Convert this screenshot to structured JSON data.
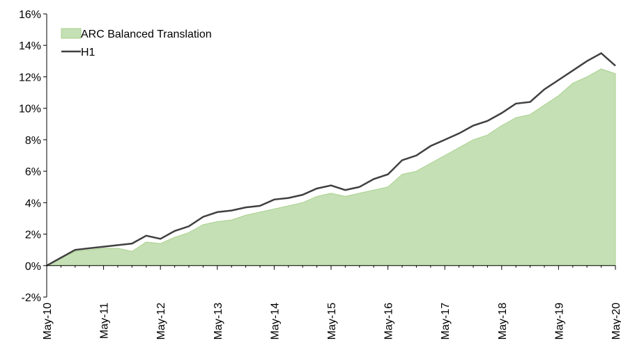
{
  "chart_data": {
    "type": "line",
    "categories": [
      "May-10",
      null,
      null,
      null,
      "May-11",
      null,
      null,
      null,
      "May-12",
      null,
      null,
      null,
      "May-13",
      null,
      null,
      null,
      "May-14",
      null,
      null,
      null,
      "May-15",
      null,
      null,
      null,
      "May-16",
      null,
      null,
      null,
      "May-17",
      null,
      null,
      null,
      "May-18",
      null,
      null,
      null,
      "May-19",
      null,
      null,
      null,
      "May-20"
    ],
    "series": [
      {
        "name": "ARC Balanced Translation",
        "kind": "area",
        "color": "#c5e0b4",
        "values": [
          0,
          0.5,
          0.9,
          1.0,
          1.1,
          1.1,
          0.9,
          1.5,
          1.4,
          1.8,
          2.1,
          2.6,
          2.8,
          2.9,
          3.2,
          3.4,
          3.6,
          3.8,
          4.0,
          4.4,
          4.6,
          4.4,
          4.6,
          4.8,
          5.0,
          5.8,
          6.0,
          6.5,
          7.0,
          7.5,
          8.0,
          8.3,
          8.9,
          9.4,
          9.6,
          10.2,
          10.8,
          11.6,
          12.0,
          12.5,
          12.2
        ]
      },
      {
        "name": "H1",
        "kind": "line",
        "color": "#404040",
        "values": [
          0,
          0.5,
          1.0,
          1.1,
          1.2,
          1.3,
          1.4,
          1.9,
          1.7,
          2.2,
          2.5,
          3.1,
          3.4,
          3.5,
          3.7,
          3.8,
          4.2,
          4.3,
          4.5,
          4.9,
          5.1,
          4.8,
          5.0,
          5.5,
          5.8,
          6.7,
          7.0,
          7.6,
          8.0,
          8.4,
          8.9,
          9.2,
          9.7,
          10.3,
          10.4,
          11.2,
          11.8,
          12.4,
          13.0,
          13.5,
          12.7
        ]
      }
    ],
    "ylim": [
      -2,
      16
    ],
    "yticks": [
      {
        "value": -2,
        "label": "-2%"
      },
      {
        "value": 0,
        "label": "0%"
      },
      {
        "value": 2,
        "label": "2%"
      },
      {
        "value": 4,
        "label": "4%"
      },
      {
        "value": 6,
        "label": "6%"
      },
      {
        "value": 8,
        "label": "8%"
      },
      {
        "value": 10,
        "label": "10%"
      },
      {
        "value": 12,
        "label": "12%"
      },
      {
        "value": 14,
        "label": "14%"
      },
      {
        "value": 16,
        "label": "16%"
      }
    ],
    "legend": "upper left"
  }
}
